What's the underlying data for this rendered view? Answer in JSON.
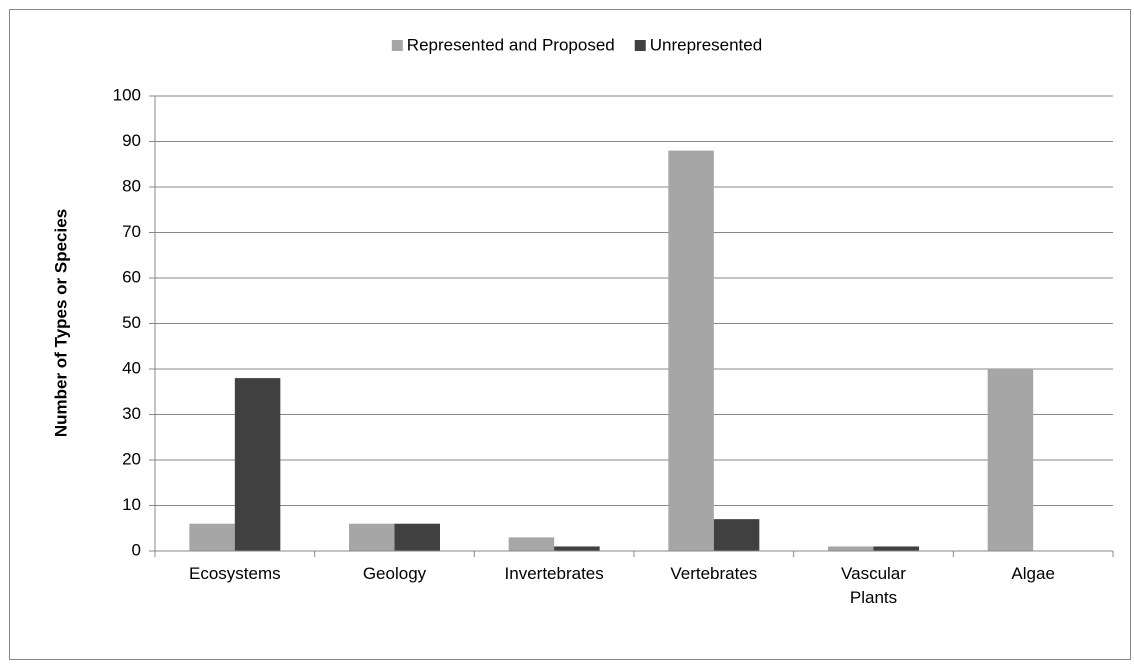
{
  "chart_data": {
    "type": "bar",
    "y_label": "Number of Types or Species",
    "categories": [
      "Ecosystems",
      "Geology",
      "Invertebrates",
      "Vertebrates",
      "Vascular Plants",
      "Algae"
    ],
    "series": [
      {
        "name": "Represented and Proposed",
        "color": "#a6a6a6",
        "values": [
          6,
          6,
          3,
          88,
          1,
          40
        ]
      },
      {
        "name": "Unrepresented",
        "color": "#404040",
        "values": [
          38,
          6,
          1,
          7,
          1,
          0
        ]
      }
    ],
    "ylim": [
      0,
      100
    ],
    "yticks": [
      0,
      10,
      20,
      30,
      40,
      50,
      60,
      70,
      80,
      90,
      100
    ],
    "grid": true,
    "legend": "top"
  }
}
